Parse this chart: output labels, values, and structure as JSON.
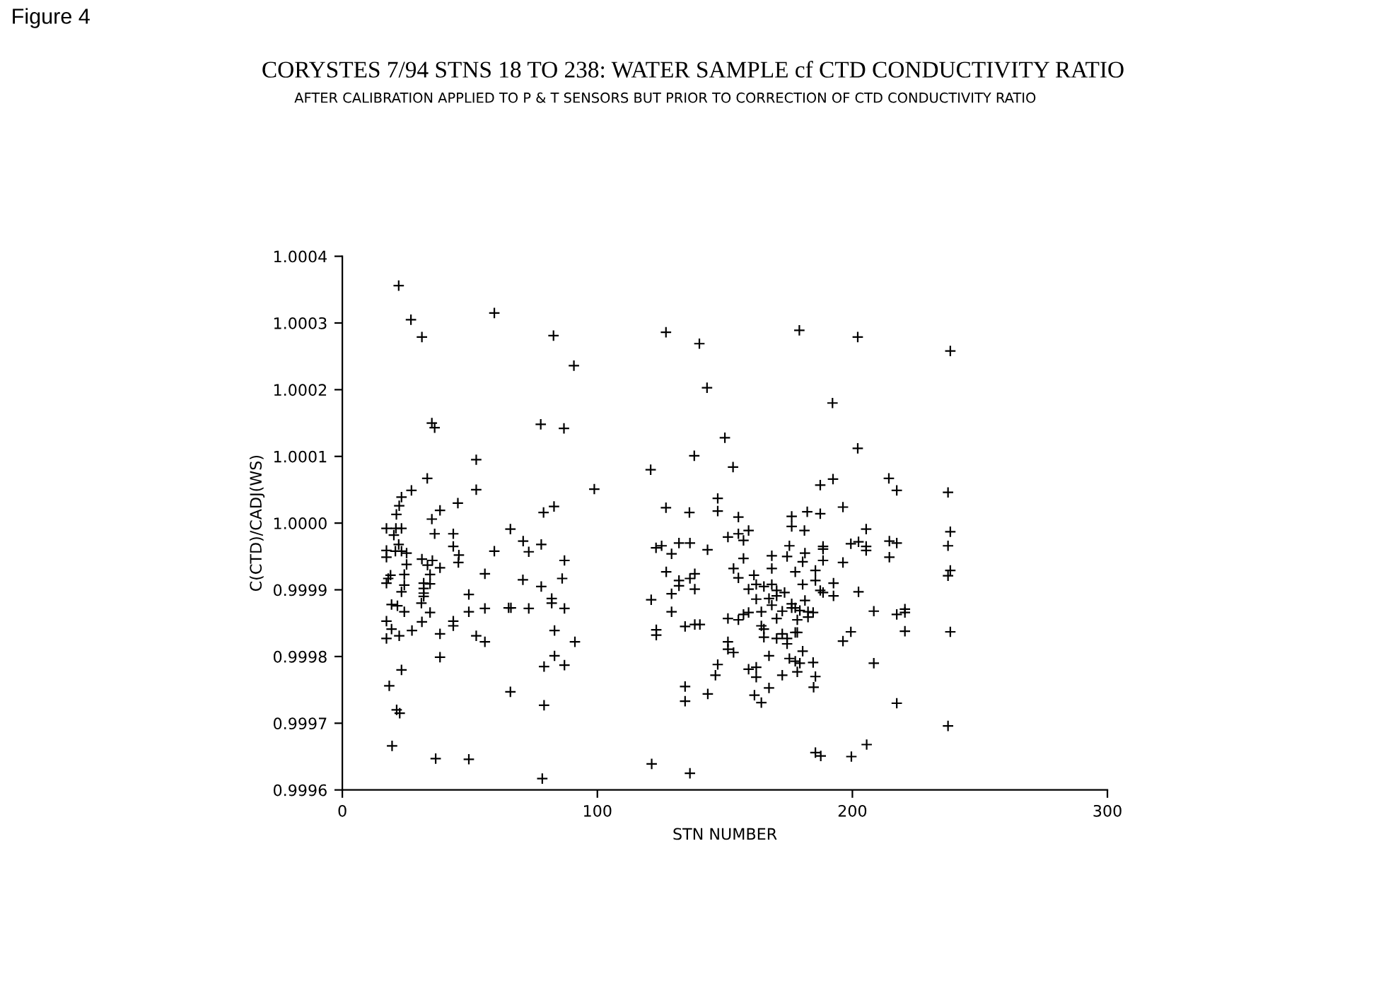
{
  "chart_data": {
    "type": "scatter",
    "title": "CORYSTES 7/94 STNS 18 TO 238: WATER SAMPLE cf CTD CONDUCTIVITY RATIO",
    "subtitle": "AFTER CALIBRATION APPLIED TO P & T SENSORS BUT PRIOR TO CORRECTION OF CTD CONDUCTIVITY RATIO",
    "xlabel": "STN NUMBER",
    "ylabel": "C(CTD)/CADJ(WS)",
    "annotations": [
      "Figure 4"
    ],
    "marker": "cross",
    "grid": false,
    "xlim": [
      0,
      300
    ],
    "xticks": [
      0,
      100,
      200,
      300
    ],
    "ylim": [
      0.9996,
      1.0004
    ],
    "yticks": [
      {
        "value": 0.9996,
        "label": "0.9996"
      },
      {
        "value": 0.9997,
        "label": "0.9997"
      },
      {
        "value": 0.9998,
        "label": "0.9998"
      },
      {
        "value": 0.9999,
        "label": "0.9999"
      },
      {
        "value": 1.0,
        "label": "1.0000"
      },
      {
        "value": 1.0001,
        "label": "1.0001"
      },
      {
        "value": 1.0002,
        "label": "1.0002"
      },
      {
        "value": 1.0003,
        "label": "1.0003"
      },
      {
        "value": 1.0004,
        "label": "1.0004"
      }
    ],
    "series": [
      {
        "color": "#000000",
        "x": [
          22.1,
          26.9,
          31.2,
          59.6,
          82.8,
          90.8,
          35.1,
          36.2,
          77.8,
          86.9,
          52.5,
          33.3,
          52.5,
          98.8,
          27.1,
          23.2,
          22.3,
          45.3,
          38.3,
          21.2,
          35.1,
          78.9,
          83.0,
          17.3,
          21.0,
          23.2,
          20.2,
          36.2,
          43.5,
          65.9,
          22.1,
          70.9,
          78.0,
          73.1,
          17.3,
          17.3,
          20.8,
          23.2,
          25.2,
          43.5,
          45.7,
          45.5,
          59.6,
          87.1,
          31.2,
          33.4,
          35.3,
          25.2,
          38.3,
          24.3,
          18.9,
          18.0,
          17.3,
          24.3,
          34.4,
          31.9,
          34.4,
          31.9,
          31.9,
          31.9,
          23.2,
          49.6,
          55.9,
          70.8,
          78.0,
          86.2,
          82.1,
          82.1,
          19.3,
          21.6,
          24.3,
          31.0,
          34.4,
          49.6,
          55.9,
          65.2,
          66.1,
          73.1,
          87.1,
          17.3,
          31.2,
          43.5,
          43.5,
          19.3,
          27.3,
          22.3,
          17.3,
          38.3,
          52.5,
          55.9,
          83.2,
          91.2,
          38.3,
          83.2,
          79.1,
          87.1,
          23.2,
          18.4,
          65.9,
          79.1,
          21.3,
          22.5,
          19.5,
          36.6,
          49.6,
          78.4,
          126.9,
          140.0,
          179.2,
          202.1,
          238.4,
          143.0,
          192.2,
          150.0,
          202.1,
          138.0,
          120.9,
          153.2,
          187.4,
          192.4,
          214.3,
          217.4,
          237.5,
          147.2,
          147.2,
          126.9,
          136.1,
          155.3,
          176.2,
          182.3,
          187.4,
          196.3,
          176.2,
          181.2,
          159.3,
          205.4,
          238.4,
          155.3,
          151.2,
          157.3,
          123.0,
          125.2,
          132.0,
          136.3,
          129.1,
          143.2,
          175.3,
          188.5,
          188.5,
          199.4,
          202.4,
          205.4,
          205.4,
          214.5,
          217.4,
          237.5,
          214.5,
          157.3,
          168.4,
          174.4,
          181.4,
          180.5,
          188.5,
          196.3,
          127.0,
          153.4,
          168.4,
          185.5,
          177.6,
          238.4,
          237.5,
          138.2,
          136.3,
          132.0,
          132.0,
          138.2,
          155.3,
          161.4,
          162.3,
          159.3,
          165.3,
          168.4,
          170.3,
          173.4,
          180.5,
          185.5,
          187.4,
          188.5,
          192.6,
          192.6,
          202.4,
          121.1,
          129.1,
          129.1,
          162.3,
          167.3,
          170.3,
          168.4,
          176.2,
          176.2,
          177.6,
          181.4,
          179.4,
          182.6,
          184.6,
          182.6,
          172.5,
          164.3,
          159.3,
          157.3,
          155.3,
          151.2,
          170.3,
          178.4,
          208.4,
          217.4,
          220.6,
          220.6,
          134.4,
          138.2,
          140.2,
          123.1,
          123.1,
          164.3,
          165.3,
          165.3,
          170.3,
          172.5,
          174.4,
          174.4,
          177.6,
          178.4,
          199.4,
          220.6,
          238.4,
          196.3,
          151.2,
          151.2,
          153.4,
          180.5,
          167.3,
          175.3,
          177.6,
          179.4,
          184.6,
          208.4,
          147.2,
          146.3,
          159.3,
          162.3,
          162.3,
          172.5,
          178.4,
          185.5,
          184.8,
          167.3,
          134.4,
          161.6,
          164.3,
          143.3,
          134.4,
          217.4,
          237.5,
          205.6,
          185.5,
          187.6,
          199.6,
          121.3,
          136.3
        ],
        "values": [
          1.000356,
          1.000305,
          1.000279,
          1.000315,
          1.000281,
          1.000236,
          1.00015,
          1.000143,
          1.000148,
          1.000142,
          1.000095,
          1.000067,
          1.00005,
          1.000051,
          1.000049,
          1.000039,
          1.000026,
          1.00003,
          1.000019,
          1.000013,
          1.000006,
          1.000016,
          1.000025,
          0.999992,
          0.999992,
          0.999992,
          0.999982,
          0.999984,
          0.999984,
          0.999991,
          0.999968,
          0.999973,
          0.999968,
          0.999957,
          0.999959,
          0.999949,
          0.999958,
          0.999958,
          0.999955,
          0.999965,
          0.999952,
          0.999941,
          0.999958,
          0.999944,
          0.999946,
          0.999937,
          0.999944,
          0.999938,
          0.999933,
          0.999923,
          0.999922,
          0.999917,
          0.99991,
          0.999907,
          0.999923,
          0.99991,
          0.999909,
          0.999902,
          0.999895,
          0.99989,
          0.999897,
          0.999893,
          0.999924,
          0.999915,
          0.999905,
          0.999917,
          0.999887,
          0.99988,
          0.999878,
          0.999876,
          0.999867,
          0.99988,
          0.999866,
          0.999867,
          0.999872,
          0.999873,
          0.999873,
          0.999872,
          0.999872,
          0.999853,
          0.999852,
          0.999853,
          0.999846,
          0.999841,
          0.999839,
          0.999831,
          0.999827,
          0.999834,
          0.999831,
          0.999822,
          0.999839,
          0.999822,
          0.999799,
          0.999801,
          0.999785,
          0.999787,
          0.99978,
          0.999756,
          0.999747,
          0.999727,
          0.99972,
          0.999715,
          0.999666,
          0.999647,
          0.999646,
          0.999617,
          1.000286,
          1.000269,
          1.000289,
          1.000279,
          1.000258,
          1.000203,
          1.00018,
          1.000128,
          1.000112,
          1.000101,
          1.00008,
          1.000084,
          1.000057,
          1.000066,
          1.000067,
          1.000049,
          1.000046,
          1.000037,
          1.000018,
          1.000023,
          1.000016,
          1.000009,
          1.00001,
          1.000017,
          1.000014,
          1.000024,
          0.999995,
          0.999989,
          0.999989,
          0.999991,
          0.999987,
          0.999984,
          0.999979,
          0.999974,
          0.999963,
          0.999966,
          0.99997,
          0.99997,
          0.999954,
          0.99996,
          0.999966,
          0.999965,
          0.999961,
          0.999969,
          0.999972,
          0.999965,
          0.999959,
          0.999973,
          0.99997,
          0.999966,
          0.999949,
          0.999947,
          0.999951,
          0.99995,
          0.999955,
          0.999942,
          0.999944,
          0.999941,
          0.999927,
          0.999932,
          0.999932,
          0.999929,
          0.999927,
          0.999929,
          0.999921,
          0.999924,
          0.999917,
          0.999914,
          0.999906,
          0.999901,
          0.999918,
          0.999922,
          0.999908,
          0.999901,
          0.999905,
          0.999908,
          0.999899,
          0.999896,
          0.999908,
          0.999914,
          0.999899,
          0.999896,
          0.99991,
          0.999891,
          0.999897,
          0.999885,
          0.999894,
          0.999867,
          0.999886,
          0.999887,
          0.999891,
          0.999877,
          0.999879,
          0.999873,
          0.999873,
          0.999884,
          0.999869,
          0.999867,
          0.999866,
          0.999859,
          0.999868,
          0.999867,
          0.999866,
          0.999863,
          0.999855,
          0.999857,
          0.999857,
          0.999855,
          0.999868,
          0.999863,
          0.999871,
          0.999866,
          0.999845,
          0.999848,
          0.999848,
          0.99984,
          0.999832,
          0.999846,
          0.999841,
          0.999829,
          0.999827,
          0.999834,
          0.999827,
          0.999819,
          0.999836,
          0.999836,
          0.999837,
          0.999838,
          0.999837,
          0.999823,
          0.999822,
          0.999811,
          0.999806,
          0.999808,
          0.999801,
          0.999797,
          0.999793,
          0.99979,
          0.999791,
          0.99979,
          0.999788,
          0.999772,
          0.999781,
          0.999784,
          0.999769,
          0.999772,
          0.999777,
          0.99977,
          0.999754,
          0.999753,
          0.999755,
          0.999742,
          0.999731,
          0.999744,
          0.999733,
          0.99973,
          0.999696,
          0.999668,
          0.999656,
          0.999651,
          0.99965,
          0.999639,
          0.999625
        ]
      }
    ]
  }
}
